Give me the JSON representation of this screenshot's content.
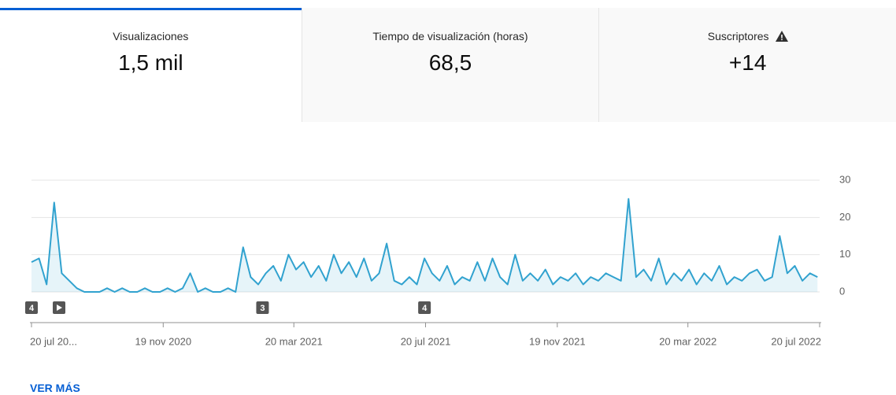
{
  "tabs": [
    {
      "title": "Visualizaciones",
      "value": "1,5 mil"
    },
    {
      "title": "Tiempo de visualización (horas)",
      "value": "68,5"
    },
    {
      "title": "Suscriptores",
      "value": "+14"
    }
  ],
  "chart_data": {
    "type": "line",
    "color": "#31a2cf",
    "x": [
      "2020-07-20",
      "2020-07-27",
      "2020-08-03",
      "2020-08-10",
      "2020-08-17",
      "2020-08-24",
      "2020-08-31",
      "2020-09-07",
      "2020-09-14",
      "2020-09-21",
      "2020-09-28",
      "2020-10-05",
      "2020-10-12",
      "2020-10-19",
      "2020-10-26",
      "2020-11-02",
      "2020-11-09",
      "2020-11-16",
      "2020-11-23",
      "2020-11-30",
      "2020-12-07",
      "2020-12-14",
      "2020-12-21",
      "2020-12-28",
      "2021-01-04",
      "2021-01-11",
      "2021-01-18",
      "2021-01-25",
      "2021-02-01",
      "2021-02-08",
      "2021-02-15",
      "2021-02-22",
      "2021-03-01",
      "2021-03-08",
      "2021-03-15",
      "2021-03-22",
      "2021-03-29",
      "2021-04-05",
      "2021-04-12",
      "2021-04-19",
      "2021-04-26",
      "2021-05-03",
      "2021-05-10",
      "2021-05-17",
      "2021-05-24",
      "2021-05-31",
      "2021-06-07",
      "2021-06-14",
      "2021-06-21",
      "2021-06-28",
      "2021-07-05",
      "2021-07-12",
      "2021-07-19",
      "2021-07-26",
      "2021-08-02",
      "2021-08-09",
      "2021-08-16",
      "2021-08-23",
      "2021-08-30",
      "2021-09-06",
      "2021-09-13",
      "2021-09-20",
      "2021-09-27",
      "2021-10-04",
      "2021-10-11",
      "2021-10-18",
      "2021-10-25",
      "2021-11-01",
      "2021-11-08",
      "2021-11-15",
      "2021-11-22",
      "2021-11-29",
      "2021-12-06",
      "2021-12-13",
      "2021-12-20",
      "2021-12-27",
      "2022-01-03",
      "2022-01-10",
      "2022-01-17",
      "2022-01-24",
      "2022-01-31",
      "2022-02-07",
      "2022-02-14",
      "2022-02-21",
      "2022-02-28",
      "2022-03-07",
      "2022-03-14",
      "2022-03-21",
      "2022-03-28",
      "2022-04-04",
      "2022-04-11",
      "2022-04-18",
      "2022-04-25",
      "2022-05-02",
      "2022-05-09",
      "2022-05-16",
      "2022-05-23",
      "2022-05-30",
      "2022-06-06",
      "2022-06-13",
      "2022-06-20",
      "2022-06-27",
      "2022-07-04",
      "2022-07-11",
      "2022-07-18"
    ],
    "series": [
      {
        "name": "Visualizaciones",
        "color": "#31a2cf",
        "values": [
          8,
          9,
          2,
          24,
          5,
          3,
          1,
          0,
          0,
          0,
          1,
          0,
          1,
          0,
          0,
          1,
          0,
          0,
          1,
          0,
          1,
          5,
          0,
          1,
          0,
          0,
          1,
          0,
          12,
          4,
          2,
          5,
          7,
          3,
          10,
          6,
          8,
          4,
          7,
          3,
          10,
          5,
          8,
          4,
          9,
          3,
          5,
          13,
          3,
          2,
          4,
          2,
          9,
          5,
          3,
          7,
          2,
          4,
          3,
          8,
          3,
          9,
          4,
          2,
          10,
          3,
          5,
          3,
          6,
          2,
          4,
          3,
          5,
          2,
          4,
          3,
          5,
          4,
          3,
          25,
          4,
          6,
          3,
          9,
          2,
          5,
          3,
          6,
          2,
          5,
          3,
          7,
          2,
          4,
          3,
          5,
          6,
          3,
          4,
          15,
          5,
          7,
          3,
          5,
          4
        ]
      }
    ],
    "xlim": [
      "2020-07-20",
      "2022-07-20"
    ],
    "xticks": [
      {
        "value": "2020-07-20",
        "label": "20 jul 20..."
      },
      {
        "value": "2020-11-19",
        "label": "19 nov 2020"
      },
      {
        "value": "2021-03-20",
        "label": "20 mar 2021"
      },
      {
        "value": "2021-07-20",
        "label": "20 jul 2021"
      },
      {
        "value": "2021-11-19",
        "label": "19 nov 2021"
      },
      {
        "value": "2022-03-20",
        "label": "20 mar 2022"
      },
      {
        "value": "2022-07-20",
        "label": "20 jul 2022"
      }
    ],
    "ylim": [
      0,
      30
    ],
    "yticks": [
      0,
      10,
      20,
      30
    ],
    "grid": true,
    "annotations": [
      {
        "x": "2020-07-20",
        "label": "4"
      },
      {
        "x": "2021-02-19",
        "label": "3"
      },
      {
        "x": "2021-07-19",
        "label": "4"
      }
    ]
  },
  "link": "VER MÁS"
}
